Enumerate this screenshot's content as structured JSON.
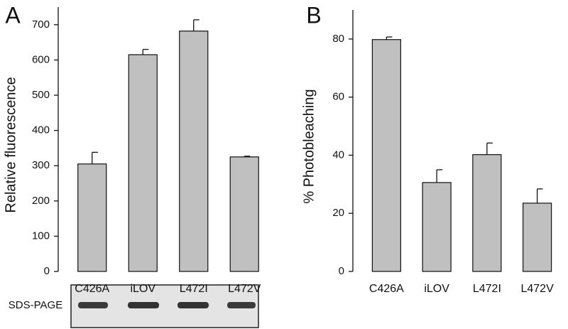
{
  "chart_data": [
    {
      "type": "bar",
      "panel": "A",
      "y_label": "Relative fluorescence",
      "categories": [
        "C426A",
        "iLOV",
        "L472I",
        "L472V"
      ],
      "values": [
        305,
        615,
        682,
        325
      ],
      "errors": [
        33,
        15,
        32,
        2
      ],
      "color": "#c0c0c0",
      "ylim": [
        0,
        750
      ],
      "yticks": [
        0,
        100,
        200,
        300,
        400,
        500,
        600,
        700
      ],
      "gel_label": "SDS-PAGE"
    },
    {
      "type": "bar",
      "panel": "B",
      "y_label": "% Photobleaching",
      "categories": [
        "C426A",
        "iLOV",
        "L472I",
        "L472V"
      ],
      "values": [
        79.8,
        30.6,
        40.2,
        23.5
      ],
      "errors": [
        0.9,
        4.4,
        4,
        4.9
      ],
      "color": "#c0c0c0",
      "ylim": [
        0,
        90
      ],
      "yticks": [
        0,
        20,
        40,
        60,
        80
      ]
    }
  ]
}
